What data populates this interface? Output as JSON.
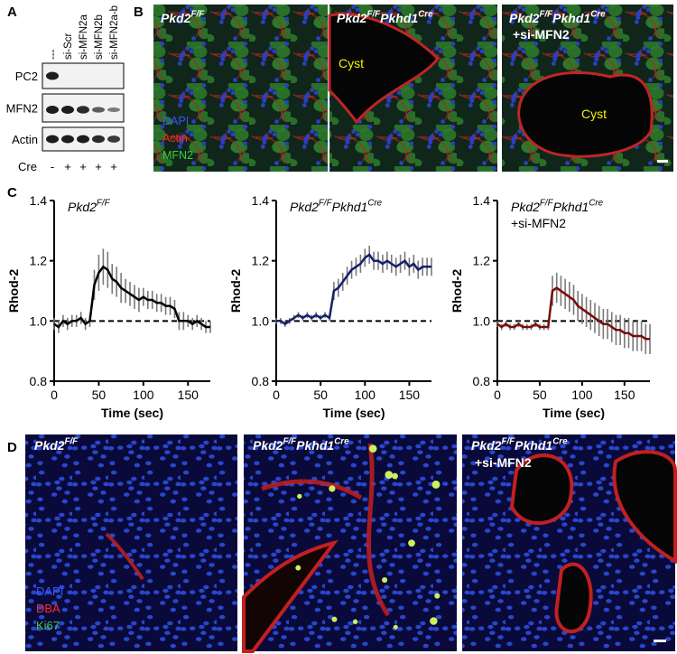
{
  "panel_a": {
    "label": "A",
    "lanes": [
      "---",
      "si-Scr",
      "si-MFN2a",
      "si-MFN2b",
      "si-MFN2a-b"
    ],
    "blots": [
      "PC2",
      "MFN2",
      "Actin"
    ],
    "cre_label": "Cre",
    "cre": [
      "-",
      "+",
      "+",
      "+",
      "+"
    ]
  },
  "panel_b": {
    "label": "B",
    "images": [
      {
        "title": [
          {
            "text": "Pkd2",
            "sup": "F/F"
          }
        ],
        "legend": [
          {
            "text": "DAPI",
            "color": "#3a55ff"
          },
          {
            "text": "Actin",
            "color": "#ff2a2a"
          },
          {
            "text": "MFN2",
            "color": "#3ccf3c"
          }
        ]
      },
      {
        "title": [
          {
            "text": "Pkd2",
            "sup": "F/F"
          },
          {
            "text": "Pkhd1",
            "sup": "Cre"
          }
        ],
        "annotation": "Cyst"
      },
      {
        "title": [
          {
            "text": "Pkd2",
            "sup": "F/F"
          },
          {
            "text": "Pkhd1",
            "sup": "Cre"
          }
        ],
        "subtitle": "+si-MFN2",
        "annotation": "Cyst"
      }
    ]
  },
  "panel_c": {
    "label": "C"
  },
  "chart_data": [
    {
      "type": "line",
      "title": [
        {
          "text": "Pkd2",
          "sup": "F/F"
        }
      ],
      "x_label": "Time (sec)",
      "y_label": "Rhod-2",
      "x": [
        0,
        5,
        10,
        15,
        20,
        25,
        30,
        35,
        40,
        45,
        50,
        55,
        60,
        65,
        70,
        75,
        80,
        85,
        90,
        95,
        100,
        105,
        110,
        115,
        120,
        125,
        130,
        135,
        140,
        145,
        150,
        155,
        160,
        165,
        170,
        175
      ],
      "series": [
        {
          "color": "#000000",
          "error_color": "#7a7a7a",
          "values": [
            0.99,
            0.98,
            1.0,
            0.99,
            1.0,
            1.0,
            1.01,
            0.99,
            1.0,
            1.12,
            1.16,
            1.18,
            1.17,
            1.14,
            1.13,
            1.11,
            1.1,
            1.09,
            1.08,
            1.07,
            1.08,
            1.07,
            1.07,
            1.06,
            1.06,
            1.05,
            1.05,
            1.04,
            1.0,
            1.0,
            1.0,
            0.99,
            1.0,
            0.99,
            0.98,
            0.98
          ],
          "errors": [
            0.02,
            0.02,
            0.02,
            0.02,
            0.02,
            0.02,
            0.02,
            0.02,
            0.02,
            0.05,
            0.06,
            0.06,
            0.06,
            0.05,
            0.05,
            0.05,
            0.04,
            0.04,
            0.04,
            0.04,
            0.03,
            0.03,
            0.03,
            0.03,
            0.03,
            0.03,
            0.03,
            0.03,
            0.03,
            0.03,
            0.02,
            0.02,
            0.02,
            0.02,
            0.02,
            0.02
          ]
        }
      ],
      "xlim": [
        0,
        175
      ],
      "ylim": [
        0.8,
        1.4
      ],
      "xticks": [
        0,
        50,
        100,
        150
      ],
      "yticks": [
        0.8,
        {
          "value": 1,
          "label": "1.0"
        },
        1.2,
        1.4
      ],
      "reference_line": {
        "value": 1,
        "style": "dashed"
      }
    },
    {
      "type": "line",
      "title": [
        {
          "text": "Pkd2",
          "sup": "F/F"
        },
        {
          "text": "Pkhd1",
          "sup": "Cre"
        }
      ],
      "x_label": "Time (sec)",
      "y_label": "Rhod-2",
      "x": [
        0,
        5,
        10,
        15,
        20,
        25,
        30,
        35,
        40,
        45,
        50,
        55,
        60,
        65,
        70,
        75,
        80,
        85,
        90,
        95,
        100,
        105,
        110,
        115,
        120,
        125,
        130,
        135,
        140,
        145,
        150,
        155,
        160,
        165,
        170,
        175
      ],
      "series": [
        {
          "color": "#14206a",
          "error_color": "#7a7a7a",
          "values": [
            1.0,
            1.0,
            0.99,
            1.0,
            1.01,
            1.02,
            1.01,
            1.02,
            1.01,
            1.02,
            1.01,
            1.02,
            1.01,
            1.1,
            1.11,
            1.13,
            1.15,
            1.17,
            1.18,
            1.19,
            1.21,
            1.22,
            1.2,
            1.2,
            1.19,
            1.2,
            1.19,
            1.18,
            1.19,
            1.2,
            1.18,
            1.19,
            1.17,
            1.18,
            1.18,
            1.18
          ],
          "errors": [
            0.01,
            0.01,
            0.01,
            0.01,
            0.01,
            0.01,
            0.01,
            0.01,
            0.01,
            0.01,
            0.01,
            0.01,
            0.01,
            0.03,
            0.03,
            0.03,
            0.03,
            0.03,
            0.03,
            0.03,
            0.03,
            0.03,
            0.03,
            0.03,
            0.03,
            0.03,
            0.03,
            0.03,
            0.03,
            0.03,
            0.03,
            0.03,
            0.03,
            0.03,
            0.03,
            0.03
          ]
        }
      ],
      "xlim": [
        0,
        175
      ],
      "ylim": [
        0.8,
        1.4
      ],
      "xticks": [
        0,
        50,
        100,
        150
      ],
      "yticks": [
        0.8,
        {
          "value": 1,
          "label": "1.0"
        },
        1.2,
        1.4
      ],
      "reference_line": {
        "value": 1,
        "style": "dashed"
      }
    },
    {
      "type": "line",
      "title": [
        {
          "text": "Pkd2",
          "sup": "F/F"
        },
        {
          "text": "Pkhd1",
          "sup": "Cre"
        }
      ],
      "subtitle": "+si-MFN2",
      "x_label": "Time (sec)",
      "y_label": "Rhod-2",
      "x": [
        0,
        5,
        10,
        15,
        20,
        25,
        30,
        35,
        40,
        45,
        50,
        55,
        60,
        65,
        70,
        75,
        80,
        85,
        90,
        95,
        100,
        105,
        110,
        115,
        120,
        125,
        130,
        135,
        140,
        145,
        150,
        155,
        160,
        165,
        170,
        175,
        180
      ],
      "series": [
        {
          "color": "#7a0a0a",
          "error_color": "#7a7a7a",
          "values": [
            0.99,
            0.98,
            0.99,
            0.98,
            0.98,
            0.99,
            0.98,
            0.98,
            0.98,
            0.99,
            0.98,
            0.98,
            0.98,
            1.1,
            1.11,
            1.1,
            1.09,
            1.08,
            1.07,
            1.05,
            1.04,
            1.03,
            1.02,
            1.01,
            1.0,
            0.99,
            0.99,
            0.98,
            0.97,
            0.97,
            0.96,
            0.96,
            0.95,
            0.95,
            0.95,
            0.94,
            0.94
          ],
          "errors": [
            0.01,
            0.01,
            0.01,
            0.01,
            0.01,
            0.01,
            0.01,
            0.01,
            0.01,
            0.01,
            0.01,
            0.01,
            0.01,
            0.05,
            0.05,
            0.05,
            0.05,
            0.05,
            0.05,
            0.05,
            0.05,
            0.05,
            0.05,
            0.05,
            0.05,
            0.05,
            0.05,
            0.05,
            0.05,
            0.05,
            0.05,
            0.05,
            0.05,
            0.05,
            0.05,
            0.05,
            0.05
          ]
        }
      ],
      "xlim": [
        0,
        180
      ],
      "ylim": [
        0.8,
        1.4
      ],
      "xticks": [
        0,
        50,
        100,
        150
      ],
      "yticks": [
        0.8,
        {
          "value": 1,
          "label": "1.0"
        },
        1.2,
        1.4
      ],
      "reference_line": {
        "value": 1,
        "style": "dashed"
      }
    }
  ],
  "panel_d": {
    "label": "D",
    "images": [
      {
        "title": [
          {
            "text": "Pkd2",
            "sup": "F/F"
          }
        ],
        "legend": [
          {
            "text": "DAPI",
            "color": "#3a55ff"
          },
          {
            "text": "DBA",
            "color": "#ff2a2a"
          },
          {
            "text": "Ki67",
            "color": "#3ccf3c"
          }
        ]
      },
      {
        "title": [
          {
            "text": "Pkd2",
            "sup": "F/F"
          },
          {
            "text": "Pkhd1",
            "sup": "Cre"
          }
        ]
      },
      {
        "title": [
          {
            "text": "Pkd2",
            "sup": "F/F"
          },
          {
            "text": "Pkhd1",
            "sup": "Cre"
          }
        ],
        "subtitle": "+si-MFN2"
      }
    ]
  }
}
